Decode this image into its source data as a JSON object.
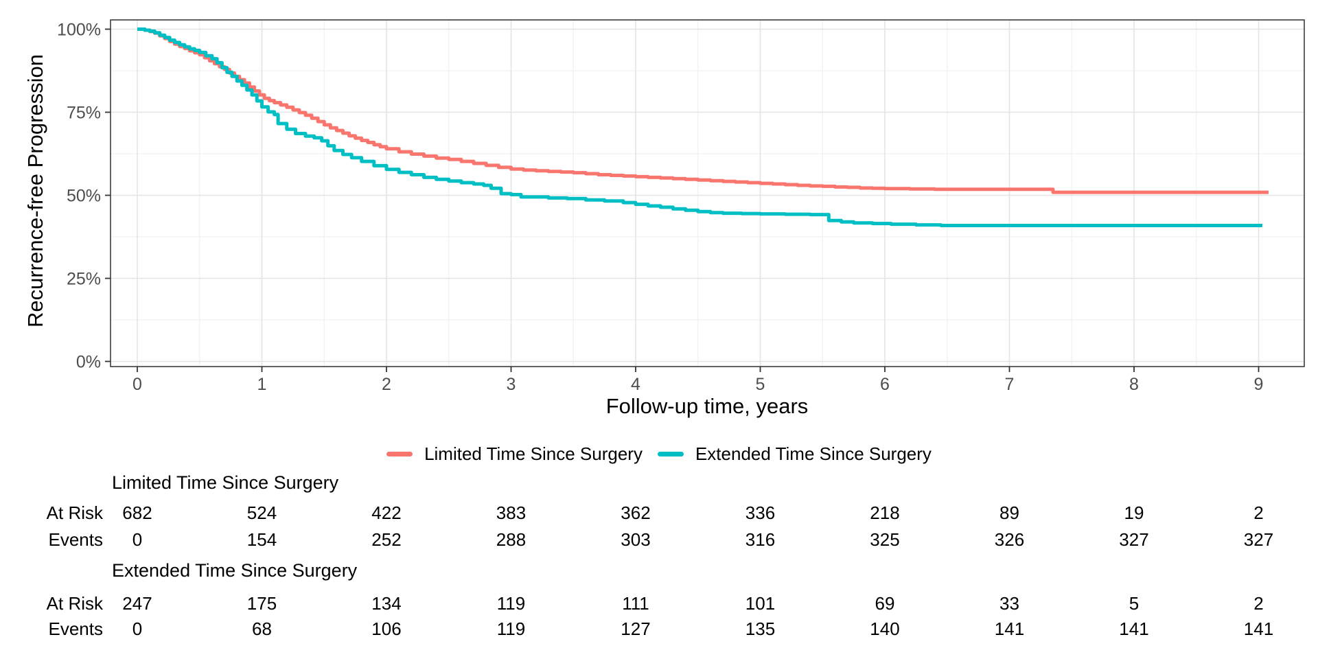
{
  "chart_data": {
    "type": "line",
    "subtype": "kaplan-meier-step",
    "title": "",
    "xlabel": "Follow-up time, years",
    "ylabel": "Recurrence-free Progression",
    "xlim": [
      -0.22,
      9.37
    ],
    "ylim": [
      0,
      100
    ],
    "grid": "major-and-minor",
    "legend_position": "bottom-center",
    "x_ticks": [
      0,
      1,
      2,
      3,
      4,
      5,
      6,
      7,
      8,
      9
    ],
    "y_ticks": [
      {
        "value": 0,
        "label": "0%"
      },
      {
        "value": 25,
        "label": "25%"
      },
      {
        "value": 50,
        "label": "50%"
      },
      {
        "value": 75,
        "label": "75%"
      },
      {
        "value": 100,
        "label": "100%"
      }
    ],
    "series": [
      {
        "name": "Limited Time Since Surgery",
        "color": "#F8766D",
        "points": [
          [
            0,
            100
          ],
          [
            0.06,
            99.7
          ],
          [
            0.1,
            99.3
          ],
          [
            0.14,
            98.8
          ],
          [
            0.18,
            98.0
          ],
          [
            0.22,
            97.2
          ],
          [
            0.26,
            96.3
          ],
          [
            0.3,
            95.5
          ],
          [
            0.34,
            94.8
          ],
          [
            0.38,
            94.2
          ],
          [
            0.42,
            93.5
          ],
          [
            0.46,
            92.9
          ],
          [
            0.5,
            92.3
          ],
          [
            0.54,
            91.4
          ],
          [
            0.58,
            90.5
          ],
          [
            0.62,
            89.6
          ],
          [
            0.66,
            88.7
          ],
          [
            0.7,
            87.9
          ],
          [
            0.74,
            86.8
          ],
          [
            0.78,
            85.8
          ],
          [
            0.82,
            84.8
          ],
          [
            0.86,
            83.8
          ],
          [
            0.9,
            82.6
          ],
          [
            0.94,
            81.4
          ],
          [
            0.98,
            80.2
          ],
          [
            1.02,
            79.2
          ],
          [
            1.06,
            78.5
          ],
          [
            1.1,
            77.9
          ],
          [
            1.15,
            77.2
          ],
          [
            1.2,
            76.5
          ],
          [
            1.25,
            75.7
          ],
          [
            1.3,
            74.9
          ],
          [
            1.35,
            74.1
          ],
          [
            1.4,
            73.2
          ],
          [
            1.45,
            72.2
          ],
          [
            1.5,
            71.2
          ],
          [
            1.55,
            70.3
          ],
          [
            1.6,
            69.5
          ],
          [
            1.65,
            68.7
          ],
          [
            1.7,
            67.9
          ],
          [
            1.75,
            67.2
          ],
          [
            1.8,
            66.5
          ],
          [
            1.85,
            65.9
          ],
          [
            1.9,
            65.2
          ],
          [
            1.95,
            64.6
          ],
          [
            2.0,
            64.0
          ],
          [
            2.1,
            63.1
          ],
          [
            2.2,
            62.4
          ],
          [
            2.3,
            61.8
          ],
          [
            2.4,
            61.2
          ],
          [
            2.5,
            60.8
          ],
          [
            2.6,
            60.2
          ],
          [
            2.7,
            59.6
          ],
          [
            2.8,
            59.0
          ],
          [
            2.9,
            58.4
          ],
          [
            3.0,
            57.9
          ],
          [
            3.1,
            57.6
          ],
          [
            3.2,
            57.4
          ],
          [
            3.3,
            57.2
          ],
          [
            3.4,
            57.0
          ],
          [
            3.5,
            56.8
          ],
          [
            3.6,
            56.5
          ],
          [
            3.7,
            56.2
          ],
          [
            3.8,
            56.0
          ],
          [
            3.9,
            55.8
          ],
          [
            4.0,
            55.6
          ],
          [
            4.1,
            55.4
          ],
          [
            4.2,
            55.2
          ],
          [
            4.3,
            55.0
          ],
          [
            4.4,
            54.8
          ],
          [
            4.5,
            54.6
          ],
          [
            4.6,
            54.4
          ],
          [
            4.7,
            54.2
          ],
          [
            4.8,
            54.0
          ],
          [
            4.9,
            53.8
          ],
          [
            5.0,
            53.6
          ],
          [
            5.1,
            53.4
          ],
          [
            5.2,
            53.2
          ],
          [
            5.3,
            53.0
          ],
          [
            5.4,
            52.8
          ],
          [
            5.5,
            52.7
          ],
          [
            5.6,
            52.5
          ],
          [
            5.7,
            52.4
          ],
          [
            5.8,
            52.2
          ],
          [
            5.9,
            52.1
          ],
          [
            6.0,
            52.0
          ],
          [
            6.2,
            51.9
          ],
          [
            6.4,
            51.8
          ],
          [
            7.35,
            50.9
          ],
          [
            9.08,
            50.9
          ]
        ]
      },
      {
        "name": "Extended Time Since Surgery",
        "color": "#00BFC4",
        "points": [
          [
            0,
            100
          ],
          [
            0.06,
            99.7
          ],
          [
            0.1,
            99.4
          ],
          [
            0.14,
            98.9
          ],
          [
            0.18,
            98.2
          ],
          [
            0.22,
            97.5
          ],
          [
            0.26,
            96.7
          ],
          [
            0.3,
            96.0
          ],
          [
            0.34,
            95.3
          ],
          [
            0.38,
            94.7
          ],
          [
            0.42,
            94.1
          ],
          [
            0.46,
            93.6
          ],
          [
            0.5,
            93.0
          ],
          [
            0.55,
            92.0
          ],
          [
            0.6,
            91.1
          ],
          [
            0.64,
            89.9
          ],
          [
            0.68,
            88.4
          ],
          [
            0.72,
            87.0
          ],
          [
            0.76,
            85.8
          ],
          [
            0.8,
            84.4
          ],
          [
            0.84,
            83.1
          ],
          [
            0.88,
            81.7
          ],
          [
            0.92,
            80.2
          ],
          [
            0.96,
            78.4
          ],
          [
            1.0,
            76.6
          ],
          [
            1.05,
            75.1
          ],
          [
            1.1,
            74.3
          ],
          [
            1.13,
            71.6
          ],
          [
            1.2,
            69.9
          ],
          [
            1.27,
            68.6
          ],
          [
            1.35,
            67.8
          ],
          [
            1.42,
            67.3
          ],
          [
            1.48,
            66.4
          ],
          [
            1.53,
            64.9
          ],
          [
            1.58,
            63.5
          ],
          [
            1.65,
            62.3
          ],
          [
            1.72,
            61.3
          ],
          [
            1.8,
            60.2
          ],
          [
            1.9,
            58.9
          ],
          [
            2.0,
            57.8
          ],
          [
            2.1,
            56.9
          ],
          [
            2.2,
            56.2
          ],
          [
            2.3,
            55.4
          ],
          [
            2.4,
            54.8
          ],
          [
            2.5,
            54.3
          ],
          [
            2.6,
            53.8
          ],
          [
            2.7,
            53.4
          ],
          [
            2.78,
            53.0
          ],
          [
            2.84,
            52.1
          ],
          [
            2.92,
            50.5
          ],
          [
            3.0,
            50.2
          ],
          [
            3.08,
            49.5
          ],
          [
            3.3,
            49.2
          ],
          [
            3.45,
            49.0
          ],
          [
            3.6,
            48.6
          ],
          [
            3.75,
            48.3
          ],
          [
            3.9,
            47.8
          ],
          [
            4.0,
            47.3
          ],
          [
            4.1,
            46.8
          ],
          [
            4.2,
            46.4
          ],
          [
            4.3,
            45.9
          ],
          [
            4.4,
            45.5
          ],
          [
            4.5,
            45.1
          ],
          [
            4.6,
            44.8
          ],
          [
            4.7,
            44.6
          ],
          [
            4.85,
            44.5
          ],
          [
            5.0,
            44.4
          ],
          [
            5.2,
            44.3
          ],
          [
            5.4,
            44.2
          ],
          [
            5.55,
            42.4
          ],
          [
            5.65,
            42.0
          ],
          [
            5.75,
            41.7
          ],
          [
            5.9,
            41.5
          ],
          [
            6.05,
            41.3
          ],
          [
            6.25,
            41.1
          ],
          [
            6.45,
            40.9
          ],
          [
            9.03,
            40.9
          ]
        ]
      }
    ]
  },
  "legend": {
    "items": [
      {
        "label": "Limited Time Since Surgery",
        "color": "#F8766D"
      },
      {
        "label": "Extended Time Since Surgery",
        "color": "#00BFC4"
      }
    ]
  },
  "risk_table": {
    "time_points": [
      0,
      1,
      2,
      3,
      4,
      5,
      6,
      7,
      8,
      9
    ],
    "row_labels": {
      "at_risk": "At Risk",
      "events": "Events"
    },
    "groups": [
      {
        "name": "Limited Time Since Surgery",
        "at_risk": [
          682,
          524,
          422,
          383,
          362,
          336,
          218,
          89,
          19,
          2
        ],
        "events": [
          0,
          154,
          252,
          288,
          303,
          316,
          325,
          326,
          327,
          327
        ]
      },
      {
        "name": "Extended Time Since Surgery",
        "at_risk": [
          247,
          175,
          134,
          119,
          111,
          101,
          69,
          33,
          5,
          2
        ],
        "events": [
          0,
          68,
          106,
          119,
          127,
          135,
          140,
          141,
          141,
          141
        ]
      }
    ]
  },
  "colors": {
    "panel_border": "#3c3c3c",
    "tick": "#333333",
    "tick_label": "#4d4d4d",
    "grid_major": "#e4e4e4",
    "grid_minor": "#f1f1f1"
  }
}
